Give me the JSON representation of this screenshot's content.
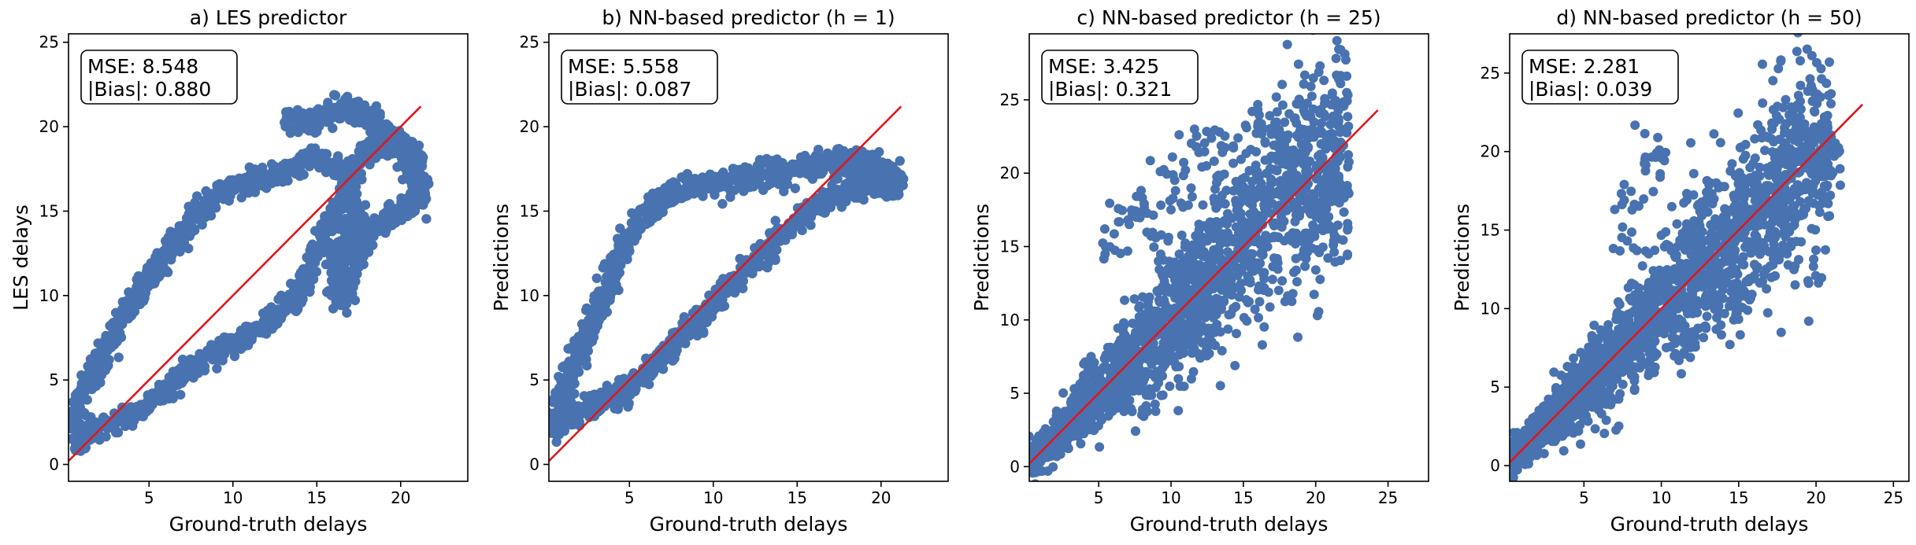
{
  "chart_data": [
    {
      "type": "scatter",
      "title": "a) LES predictor",
      "xlabel": "Ground-truth delays",
      "ylabel": "LES delays",
      "xlim": [
        0.2,
        24.0
      ],
      "ylim": [
        -1.0,
        25.5
      ],
      "xticks": [
        5,
        10,
        15,
        20
      ],
      "yticks": [
        0,
        5,
        10,
        15,
        20,
        25
      ],
      "stats": {
        "mse": "MSE:  8.548",
        "bias": "|Bias|: 0.880"
      },
      "identity_line": [
        0.2,
        21.2
      ],
      "shape": "loop",
      "series": [
        {
          "points": [
            [
              0.5,
              1.2
            ],
            [
              1.5,
              1.8
            ],
            [
              3,
              2.5
            ],
            [
              4.5,
              3.2
            ],
            [
              6,
              4.5
            ],
            [
              7.5,
              5.8
            ],
            [
              9,
              6.5
            ],
            [
              10.5,
              7.4
            ],
            [
              12,
              8.4
            ],
            [
              13.5,
              9.6
            ],
            [
              14.5,
              11.5
            ],
            [
              15.5,
              13.6
            ],
            [
              16.5,
              15.6
            ],
            [
              17.5,
              17.8
            ],
            [
              18.5,
              19.2
            ],
            [
              20,
              18.6
            ],
            [
              21,
              17.0
            ],
            [
              21.2,
              15.5
            ],
            [
              20.5,
              15.4
            ],
            [
              19.5,
              14.8
            ],
            [
              18,
              13.8
            ],
            [
              17.5,
              12.5
            ],
            [
              17,
              11.0
            ],
            [
              16.5,
              9.6
            ],
            [
              16.2,
              10.4
            ],
            [
              16.5,
              12.5
            ],
            [
              17.3,
              15.0
            ],
            [
              16.5,
              17.5
            ],
            [
              15,
              18.2
            ],
            [
              13.5,
              17.5
            ],
            [
              12.5,
              17.2
            ],
            [
              11,
              16.8
            ],
            [
              9.5,
              16.3
            ],
            [
              8,
              15.0
            ],
            [
              7,
              13.5
            ],
            [
              6,
              12.5
            ],
            [
              5,
              11.0
            ],
            [
              4,
              9.5
            ],
            [
              3,
              8.0
            ],
            [
              2,
              6.0
            ],
            [
              1,
              4.2
            ],
            [
              0.5,
              2.5
            ],
            [
              13.5,
              20.6
            ],
            [
              15,
              20.3
            ],
            [
              16.5,
              21.2
            ],
            [
              17.8,
              20.8
            ],
            [
              19.5,
              19.6
            ],
            [
              21,
              18.3
            ]
          ]
        }
      ]
    },
    {
      "type": "scatter",
      "title": "b) NN-based predictor (h = 1)",
      "xlabel": "Ground-truth delays",
      "ylabel": "Predictions",
      "xlim": [
        0.2,
        24.0
      ],
      "ylim": [
        -1.0,
        25.5
      ],
      "xticks": [
        5,
        10,
        15,
        20
      ],
      "yticks": [
        0,
        5,
        10,
        15,
        20,
        25
      ],
      "stats": {
        "mse": "MSE:  5.558",
        "bias": "|Bias|: 0.087"
      },
      "identity_line": [
        0.2,
        21.2
      ],
      "shape": "loop",
      "series": [
        {
          "points": [
            [
              0.5,
              2.0
            ],
            [
              1.5,
              2.8
            ],
            [
              3,
              3.5
            ],
            [
              5,
              4.5
            ],
            [
              7,
              6.5
            ],
            [
              9,
              8.5
            ],
            [
              11,
              10.5
            ],
            [
              13,
              12.5
            ],
            [
              15,
              14.5
            ],
            [
              16.5,
              15.5
            ],
            [
              18,
              16.2
            ],
            [
              19.5,
              16.8
            ],
            [
              21,
              16.5
            ],
            [
              20.8,
              17.3
            ],
            [
              19.2,
              17.8
            ],
            [
              17.5,
              18.0
            ],
            [
              16,
              17.7
            ],
            [
              14,
              17.3
            ],
            [
              12,
              17.0
            ],
            [
              10,
              16.6
            ],
            [
              8,
              16.3
            ],
            [
              7,
              15.5
            ],
            [
              6,
              14.8
            ],
            [
              5,
              13.5
            ],
            [
              4.5,
              12.5
            ],
            [
              4,
              11.0
            ],
            [
              3,
              9.0
            ],
            [
              2,
              6.5
            ],
            [
              1,
              4.0
            ],
            [
              0.5,
              2.5
            ],
            [
              17.8,
              17.2
            ],
            [
              18.8,
              17.8
            ],
            [
              19.5,
              17.5
            ],
            [
              20.5,
              16.9
            ]
          ]
        }
      ]
    },
    {
      "type": "scatter",
      "title": "c) NN-based predictor (h = 25)",
      "xlabel": "Ground-truth delays",
      "ylabel": "Predictions",
      "xlim": [
        0.2,
        27.8
      ],
      "ylim": [
        -1.0,
        29.5
      ],
      "xticks": [
        5,
        10,
        15,
        20,
        25
      ],
      "yticks": [
        0,
        5,
        10,
        15,
        20,
        25
      ],
      "stats": {
        "mse": "MSE:  3.425",
        "bias": "|Bias|: 0.321"
      },
      "identity_line": [
        0.2,
        24.3
      ],
      "shape": "cloud",
      "series": [
        {
          "points": [
            [
              0.5,
              0.8
            ],
            [
              1.5,
              1.2
            ],
            [
              2.5,
              2.5
            ],
            [
              3.5,
              3.5
            ],
            [
              4,
              5
            ],
            [
              5,
              6
            ],
            [
              6,
              7
            ],
            [
              7,
              8
            ],
            [
              8,
              10
            ],
            [
              9,
              11
            ],
            [
              10,
              13
            ],
            [
              11,
              14
            ],
            [
              12,
              15
            ],
            [
              13,
              16
            ],
            [
              14,
              17
            ],
            [
              15,
              18
            ],
            [
              16,
              19
            ],
            [
              17,
              20
            ],
            [
              18,
              21
            ],
            [
              19,
              21
            ],
            [
              20,
              21
            ],
            [
              21,
              20
            ],
            [
              8,
              4
            ],
            [
              9,
              5
            ],
            [
              10,
              8
            ],
            [
              12,
              10
            ],
            [
              13,
              11
            ],
            [
              6,
              15
            ],
            [
              7,
              17
            ],
            [
              8,
              18
            ],
            [
              10,
              20
            ],
            [
              12,
              22
            ],
            [
              14,
              22
            ],
            [
              16,
              23
            ],
            [
              17,
              24
            ],
            [
              19,
              22
            ],
            [
              20,
              17
            ],
            [
              21,
              15
            ],
            [
              9,
              16
            ],
            [
              11,
              18
            ],
            [
              13,
              19
            ]
          ]
        }
      ]
    },
    {
      "type": "scatter",
      "title": "d) NN-based predictor (h = 50)",
      "xlabel": "Ground-truth delays",
      "ylabel": "Predictions",
      "xlim": [
        0.2,
        26.0
      ],
      "ylim": [
        -1.0,
        27.5
      ],
      "xticks": [
        5,
        10,
        15,
        20,
        25
      ],
      "yticks": [
        0,
        5,
        10,
        15,
        20,
        25
      ],
      "stats": {
        "mse": "MSE:  2.281",
        "bias": "|Bias|: 0.039"
      },
      "identity_line": [
        0.2,
        23.0
      ],
      "shape": "cloud",
      "series": [
        {
          "points": [
            [
              0.5,
              0.8
            ],
            [
              1.5,
              1.5
            ],
            [
              2.5,
              2.5
            ],
            [
              3.5,
              3.5
            ],
            [
              4.5,
              4.5
            ],
            [
              5.5,
              5.5
            ],
            [
              6.5,
              6.5
            ],
            [
              7.5,
              7.5
            ],
            [
              8.5,
              8.5
            ],
            [
              9.5,
              9.5
            ],
            [
              10.5,
              10.5
            ],
            [
              11.5,
              11.5
            ],
            [
              12.5,
              12.5
            ],
            [
              13.5,
              13.5
            ],
            [
              14.5,
              14.5
            ],
            [
              15.5,
              15.5
            ],
            [
              16.5,
              16.5
            ],
            [
              17.5,
              17.5
            ],
            [
              18.5,
              18.5
            ],
            [
              19.5,
              19.5
            ],
            [
              20.5,
              20.0
            ],
            [
              7.5,
              14
            ],
            [
              8,
              17
            ],
            [
              9,
              19
            ],
            [
              10,
              20
            ],
            [
              12,
              16
            ],
            [
              13,
              18
            ],
            [
              14,
              12
            ],
            [
              15,
              10
            ],
            [
              16,
              12
            ],
            [
              17,
              14
            ],
            [
              18,
              22
            ],
            [
              19,
              21
            ],
            [
              20,
              18
            ],
            [
              21,
              20
            ],
            [
              11,
              9
            ],
            [
              12,
              8
            ]
          ]
        }
      ]
    }
  ],
  "colors": {
    "points": "#4872b0",
    "identity_line": "#e0161b"
  }
}
